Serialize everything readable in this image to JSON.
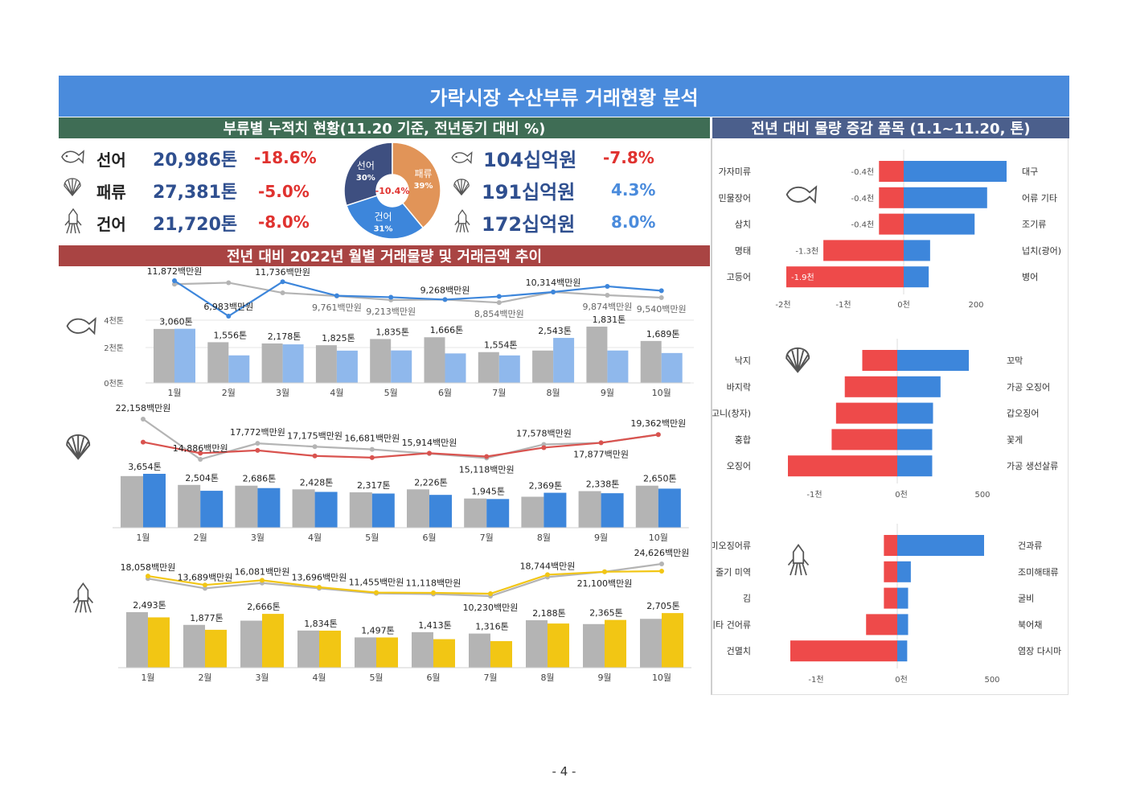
{
  "title": "가락시장 수산부류 거래현황 분석",
  "section_left": "부류별 누적치 현황(11.20 기준, 전년동기 대비 %)",
  "section_right": "전년 대비 물량 증감 품목 (1.1~11.20, 톤)",
  "section_mid": "전년 대비 2022년 월별 거래물량 및 거래금액  추이",
  "page_number": "- 4 -",
  "colors": {
    "gray": "#b4b4b4",
    "blue_light": "#8fb8ec",
    "blue": "#3d86db",
    "yellow": "#f2c614",
    "red": "#ee4a4a",
    "line_red": "#d9534f",
    "pie_fish": "#3e4f80",
    "pie_shell": "#e19458",
    "pie_dry": "#3d86db"
  },
  "summary": {
    "volume": [
      {
        "icon": "fish-icon",
        "name": "선어",
        "value": "20,986톤",
        "change": "-18.6%"
      },
      {
        "icon": "shell-icon",
        "name": "패류",
        "value": "27,381톤",
        "change": "-5.0%"
      },
      {
        "icon": "squid-icon",
        "name": "건어",
        "value": "21,720톤",
        "change": "-8.0%"
      }
    ],
    "amount": [
      {
        "icon": "fish-icon",
        "value": "104십억원",
        "change": "-7.8%"
      },
      {
        "icon": "shell-icon",
        "value": "191십억원",
        "change": "4.3%"
      },
      {
        "icon": "squid-icon",
        "value": "172십억원",
        "change": "8.0%"
      }
    ]
  },
  "chart_data": [
    {
      "type": "pie",
      "center_label": "-10.4%",
      "slices": [
        {
          "label": "선어",
          "pct_label": "30%",
          "value": 30
        },
        {
          "label": "패류",
          "pct_label": "39%",
          "value": 39
        },
        {
          "label": "건어",
          "pct_label": "31%",
          "value": 31
        }
      ]
    },
    {
      "type": "bar",
      "category": "선어",
      "categories": [
        "1월",
        "2월",
        "3월",
        "4월",
        "5월",
        "6월",
        "7월",
        "8월",
        "9월",
        "10월"
      ],
      "ytick_labels": [
        "0천톤",
        "2천톤",
        "4천톤"
      ],
      "ylim": [
        0,
        4000
      ],
      "series": [
        {
          "values": [
            3050,
            2300,
            2230,
            2130,
            2480,
            2580,
            1740,
            1830,
            3180,
            2370
          ]
        },
        {
          "values": [
            3060,
            1556,
            2178,
            1825,
            1835,
            1666,
            1554,
            2543,
            1831,
            1689
          ]
        }
      ],
      "bar_labels": [
        "3,060톤",
        "1,556톤",
        "2,178톤",
        "1,825톤",
        "1,835톤",
        "1,666톤",
        "1,554톤",
        "2,543톤",
        "1,831톤",
        "1,689톤"
      ],
      "lines": [
        {
          "values": [
            11400,
            11600,
            10200,
            9761,
            9213,
            9268,
            8854,
            10314,
            9874,
            9540
          ]
        },
        {
          "values": [
            11872,
            6983,
            11736,
            9800,
            9600,
            9268,
            9700,
            10314,
            11100,
            10500
          ]
        }
      ],
      "line_labels_2021": [
        "",
        "",
        "",
        "9,761백만원",
        "9,213백만원",
        "",
        "8,854백만원",
        "",
        "9,874백만원",
        "9,540백만원"
      ],
      "line_labels_2022": [
        "11,872백만원",
        "6,983백만원",
        "11,736백만원",
        "",
        "",
        "9,268백만원",
        "",
        "10,314백만원",
        "",
        ""
      ]
    },
    {
      "type": "bar",
      "category": "패류",
      "categories": [
        "1월",
        "2월",
        "3월",
        "4월",
        "5월",
        "6월",
        "7월",
        "8월",
        "9월",
        "10월"
      ],
      "series": [
        {
          "values": [
            3500,
            2900,
            2850,
            2600,
            2400,
            2600,
            1980,
            2100,
            2480,
            2850
          ]
        },
        {
          "values": [
            3654,
            2504,
            2686,
            2428,
            2317,
            2226,
            1945,
            2369,
            2338,
            2650
          ]
        }
      ],
      "bar_labels": [
        "3,654톤",
        "2,504톤",
        "2,686톤",
        "2,428톤",
        "2,317톤",
        "2,226톤",
        "1,945톤",
        "2,369톤",
        "2,338톤",
        "2,650톤"
      ],
      "lines": [
        {
          "values": [
            22158,
            14886,
            17772,
            17175,
            16681,
            15914,
            15118,
            17578,
            17877,
            19362
          ]
        },
        {
          "values": [
            18000,
            16000,
            16500,
            15500,
            15200,
            16000,
            15400,
            17000,
            17877,
            19362
          ]
        }
      ],
      "line_labels": [
        "22,158백만원",
        "14,886백만원",
        "17,772백만원",
        "17,175백만원",
        "16,681백만원",
        "15,914백만원",
        "15,118백만원",
        "17,578백만원",
        "17,877백만원",
        "19,362백만원"
      ]
    },
    {
      "type": "bar",
      "category": "건어",
      "categories": [
        "1월",
        "2월",
        "3월",
        "4월",
        "5월",
        "6월",
        "7월",
        "8월",
        "9월",
        "10월"
      ],
      "series": [
        {
          "values": [
            2750,
            2120,
            2330,
            1840,
            1500,
            1760,
            1690,
            2350,
            2160,
            2420
          ]
        },
        {
          "values": [
            2493,
            1877,
            2666,
            1834,
            1497,
            1413,
            1316,
            2188,
            2365,
            2705
          ]
        }
      ],
      "bar_labels": [
        "2,493톤",
        "1,877톤",
        "2,666톤",
        "1,834톤",
        "1,497톤",
        "1,413톤",
        "1,316톤",
        "2,188톤",
        "2,365톤",
        "2,705톤"
      ],
      "lines": [
        {
          "values": [
            18058,
            13689,
            16081,
            13696,
            11455,
            11118,
            10230,
            18744,
            21100,
            24626
          ]
        },
        {
          "values": [
            19200,
            15200,
            17300,
            14200,
            11800,
            11700,
            11300,
            19800,
            21100,
            21400
          ]
        }
      ],
      "line_labels": [
        "18,058백만원",
        "13,689백만원",
        "16,081백만원",
        "13,696백만원",
        "11,455백만원",
        "11,118백만원",
        "10,230백만원",
        "18,744백만원",
        "21,100백만원",
        "24,626백만원"
      ]
    },
    {
      "type": "bar",
      "orientation": "horizontal",
      "category": "선어",
      "decrease": [
        {
          "label": "가자미류",
          "value": -400,
          "value_label": "-0.4천"
        },
        {
          "label": "민물장어",
          "value": -400,
          "value_label": "-0.4천"
        },
        {
          "label": "삼치",
          "value": -400,
          "value_label": "-0.4천"
        },
        {
          "label": "명태",
          "value": -1300,
          "value_label": "-1.3천"
        },
        {
          "label": "고등어",
          "value": -1900,
          "value_label": "-1.9천"
        }
      ],
      "increase": [
        {
          "label": "대구",
          "value": 370
        },
        {
          "label": "어류 기타",
          "value": 300
        },
        {
          "label": "조기류",
          "value": 255
        },
        {
          "label": "넙치(광어)",
          "value": 95
        },
        {
          "label": "병어",
          "value": 90
        }
      ],
      "xtick_labels": [
        "-2천",
        "-1천",
        "0천",
        "200"
      ]
    },
    {
      "type": "bar",
      "orientation": "horizontal",
      "category": "패류",
      "decrease": [
        {
          "label": "낙지",
          "value": -400
        },
        {
          "label": "바지락",
          "value": -600
        },
        {
          "label": "고니(창자)",
          "value": -700
        },
        {
          "label": "홍합",
          "value": -750
        },
        {
          "label": "오징어",
          "value": -1250
        }
      ],
      "increase": [
        {
          "label": "꼬막",
          "value": 430
        },
        {
          "label": "가공 오징어",
          "value": 260
        },
        {
          "label": "갑오징어",
          "value": 215
        },
        {
          "label": "꽃게",
          "value": 210
        },
        {
          "label": "가공 생선살류",
          "value": 210
        }
      ],
      "xtick_labels": [
        "-1천",
        "0천",
        "500"
      ]
    },
    {
      "type": "bar",
      "orientation": "horizontal",
      "category": "건어",
      "decrease": [
        {
          "label": "조미오징어류",
          "value": -150
        },
        {
          "label": "줄기 미역",
          "value": -150
        },
        {
          "label": "김",
          "value": -150
        },
        {
          "label": "기타 건어류",
          "value": -350
        },
        {
          "label": "건멸치",
          "value": -1200
        }
      ],
      "increase": [
        {
          "label": "건과류",
          "value": 480
        },
        {
          "label": "조미해태류",
          "value": 75
        },
        {
          "label": "굴비",
          "value": 60
        },
        {
          "label": "북어채",
          "value": 60
        },
        {
          "label": "염장 다시마",
          "value": 55
        }
      ],
      "xtick_labels": [
        "-1천",
        "0천",
        "500"
      ]
    }
  ]
}
